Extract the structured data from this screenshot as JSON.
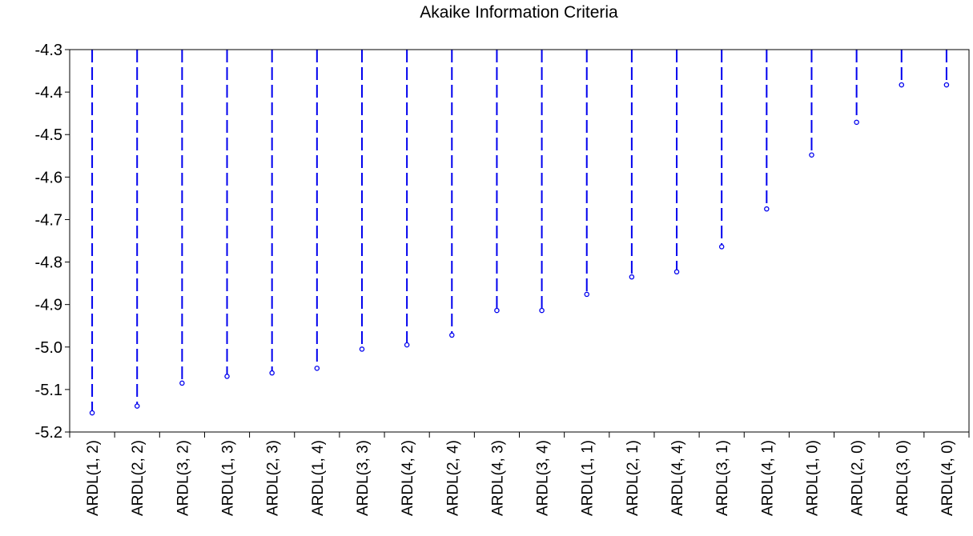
{
  "chart_data": {
    "type": "scatter",
    "style": "dropline",
    "title": "Akaike Information Criteria",
    "xlabel": "",
    "ylabel": "",
    "ylim": [
      -5.2,
      -4.3
    ],
    "yticks": [
      "-4.3",
      "-4.4",
      "-4.5",
      "-4.6",
      "-4.7",
      "-4.8",
      "-4.9",
      "-5.0",
      "-5.1",
      "-5.2"
    ],
    "grid": false,
    "legend": "none",
    "color": "#0000ee",
    "categories": [
      "ARDL(1, 2)",
      "ARDL(2, 2)",
      "ARDL(3, 2)",
      "ARDL(1, 3)",
      "ARDL(2, 3)",
      "ARDL(1, 4)",
      "ARDL(3, 3)",
      "ARDL(4, 2)",
      "ARDL(2, 4)",
      "ARDL(4, 3)",
      "ARDL(3, 4)",
      "ARDL(1, 1)",
      "ARDL(2, 1)",
      "ARDL(4, 4)",
      "ARDL(3, 1)",
      "ARDL(4, 1)",
      "ARDL(1, 0)",
      "ARDL(2, 0)",
      "ARDL(3, 0)",
      "ARDL(4, 0)"
    ],
    "values": [
      -5.155,
      -5.139,
      -5.085,
      -5.069,
      -5.061,
      -5.05,
      -5.005,
      -4.995,
      -4.972,
      -4.914,
      -4.914,
      -4.876,
      -4.835,
      -4.823,
      -4.764,
      -4.675,
      -4.548,
      -4.471,
      -4.383,
      -4.383
    ]
  }
}
